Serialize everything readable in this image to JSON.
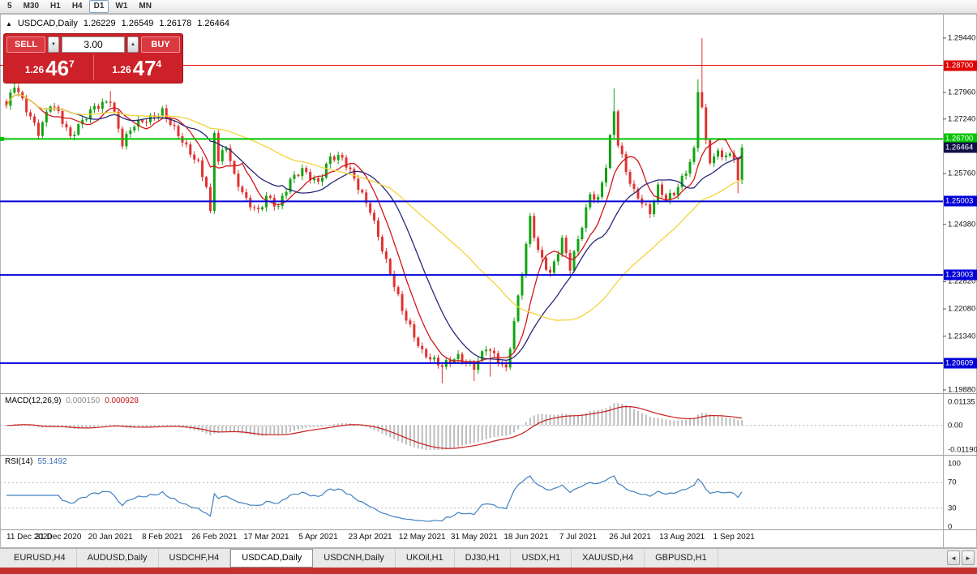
{
  "colors": {
    "candle_up": "#12a312",
    "candle_down": "#e03232",
    "ma_fast": "#d01818",
    "ma_mid": "#282878",
    "ma_slow": "#f2d43c",
    "macd_hist": "#bdbdbd",
    "macd_signal": "#c81e1e",
    "rsi_line": "#4080c0",
    "hline_red": "#e00000",
    "hline_green": "#00c400",
    "hline_blue": "#0000d8",
    "current_price_bg": "#101048",
    "panel_red": "#cd2129",
    "button_red": "#d93a40",
    "taskbar_red": "#c53030"
  },
  "toolbar": {
    "timeframes": [
      {
        "label": "5",
        "active": false
      },
      {
        "label": "M30",
        "active": false
      },
      {
        "label": "H1",
        "active": false
      },
      {
        "label": "H4",
        "active": false
      },
      {
        "label": "D1",
        "active": true
      },
      {
        "label": "W1",
        "active": false
      },
      {
        "label": "MN",
        "active": false
      }
    ]
  },
  "chart_header": {
    "collapse_icon": "▲",
    "symbol": "USDCAD,Daily",
    "open": "1.26229",
    "high": "1.26549",
    "low": "1.26178",
    "close": "1.26464"
  },
  "trade_panel": {
    "sell_label": "SELL",
    "buy_label": "BUY",
    "volume": "3.00",
    "down_arrow": "▼",
    "up_arrow": "▲",
    "sell_price": {
      "prefix": "1.26",
      "big": "46",
      "sup": "7"
    },
    "buy_price": {
      "prefix": "1.26",
      "big": "47",
      "sup": "4"
    }
  },
  "price_axis": {
    "plain_ticks": [
      "1.29440",
      "1.27960",
      "1.27240",
      "1.25760",
      "1.24380",
      "1.22820",
      "1.22080",
      "1.21340",
      "1.19880"
    ],
    "badges": [
      {
        "text": "1.28700",
        "bg": "#e00000"
      },
      {
        "text": "1.26700",
        "bg": "#00c400"
      },
      {
        "text": "1.26464",
        "bg": "#101048"
      },
      {
        "text": "1.25003",
        "bg": "#0000d8"
      },
      {
        "text": "1.23003",
        "bg": "#0000d8"
      },
      {
        "text": "1.20609",
        "bg": "#0000d8"
      }
    ]
  },
  "hlines": [
    {
      "value": 1.287,
      "color_key": "hline_red",
      "width": 1,
      "left_marker": false
    },
    {
      "value": 1.267,
      "color_key": "hline_green",
      "width": 2,
      "left_marker": true
    },
    {
      "value": 1.25003,
      "color_key": "hline_blue",
      "width": 2,
      "left_marker": false
    },
    {
      "value": 1.23003,
      "color_key": "hline_blue",
      "width": 2,
      "left_marker": false
    },
    {
      "value": 1.20609,
      "color_key": "hline_blue",
      "width": 2,
      "left_marker": false
    }
  ],
  "chart_data": {
    "type": "candlestick",
    "symbol": "USDCAD",
    "timeframe": "Daily",
    "visible_price_range": [
      1.1988,
      1.2944
    ],
    "candle_count": 185,
    "last_close": 1.26464,
    "close_keypoints": [
      [
        0,
        1.276
      ],
      [
        2,
        1.2812
      ],
      [
        5,
        1.2746
      ],
      [
        8,
        1.269
      ],
      [
        11,
        1.2772
      ],
      [
        13,
        1.2742
      ],
      [
        16,
        1.2668
      ],
      [
        19,
        1.2716
      ],
      [
        22,
        1.2762
      ],
      [
        26,
        1.2778
      ],
      [
        29,
        1.2652
      ],
      [
        32,
        1.2706
      ],
      [
        36,
        1.2732
      ],
      [
        39,
        1.2748
      ],
      [
        42,
        1.2692
      ],
      [
        45,
        1.2642
      ],
      [
        48,
        1.2606
      ],
      [
        50,
        1.2548
      ],
      [
        51,
        1.2472
      ],
      [
        52,
        1.2696
      ],
      [
        53,
        1.2612
      ],
      [
        55,
        1.2648
      ],
      [
        57,
        1.2562
      ],
      [
        60,
        1.2502
      ],
      [
        63,
        1.2478
      ],
      [
        65,
        1.2518
      ],
      [
        68,
        1.2482
      ],
      [
        71,
        1.2552
      ],
      [
        74,
        1.2588
      ],
      [
        78,
        1.2556
      ],
      [
        81,
        1.2618
      ],
      [
        84,
        1.2612
      ],
      [
        87,
        1.2562
      ],
      [
        91,
        1.2482
      ],
      [
        95,
        1.2332
      ],
      [
        99,
        1.2202
      ],
      [
        104,
        1.2096
      ],
      [
        109,
        1.2048
      ],
      [
        113,
        1.2076
      ],
      [
        117,
        1.2056
      ],
      [
        120,
        1.2106
      ],
      [
        123,
        1.2062
      ],
      [
        125,
        1.2038
      ],
      [
        127,
        1.2172
      ],
      [
        129,
        1.2312
      ],
      [
        131,
        1.2462
      ],
      [
        133,
        1.2366
      ],
      [
        136,
        1.2296
      ],
      [
        139,
        1.2392
      ],
      [
        141,
        1.2322
      ],
      [
        144,
        1.2442
      ],
      [
        146,
        1.2522
      ],
      [
        148,
        1.2502
      ],
      [
        150,
        1.2592
      ],
      [
        152,
        1.2742
      ],
      [
        153,
        1.2656
      ],
      [
        155,
        1.2586
      ],
      [
        157,
        1.2532
      ],
      [
        159,
        1.2502
      ],
      [
        161,
        1.2468
      ],
      [
        163,
        1.2532
      ],
      [
        165,
        1.2502
      ],
      [
        167,
        1.2522
      ],
      [
        170,
        1.2588
      ],
      [
        172,
        1.2642
      ],
      [
        173,
        1.2806
      ],
      [
        174,
        1.2756
      ],
      [
        175,
        1.2656
      ],
      [
        176,
        1.2606
      ],
      [
        178,
        1.2626
      ],
      [
        180,
        1.2622
      ],
      [
        182,
        1.2628
      ],
      [
        183,
        1.2562
      ],
      [
        184,
        1.26464
      ]
    ],
    "wick_overrides": [
      {
        "i": 2,
        "high": 1.283
      },
      {
        "i": 26,
        "high": 1.28
      },
      {
        "i": 51,
        "low": 1.2468
      },
      {
        "i": 52,
        "low": 1.2466
      },
      {
        "i": 109,
        "low": 1.2006
      },
      {
        "i": 117,
        "low": 1.2012
      },
      {
        "i": 121,
        "low": 1.2024
      },
      {
        "i": 152,
        "high": 1.2807
      },
      {
        "i": 173,
        "high": 1.2832
      },
      {
        "i": 174,
        "high": 1.2944
      },
      {
        "i": 183,
        "low": 1.2522
      }
    ],
    "x_labels": [
      {
        "i": 0,
        "t": "11 Dec 2020"
      },
      {
        "i": 13,
        "t": "31 Dec 2020"
      },
      {
        "i": 26,
        "t": "20 Jan 2021"
      },
      {
        "i": 39,
        "t": "8 Feb 2021"
      },
      {
        "i": 52,
        "t": "26 Feb 2021"
      },
      {
        "i": 65,
        "t": "17 Mar 2021"
      },
      {
        "i": 78,
        "t": "5 Apr 2021"
      },
      {
        "i": 91,
        "t": "23 Apr 2021"
      },
      {
        "i": 104,
        "t": "12 May 2021"
      },
      {
        "i": 117,
        "t": "31 May 2021"
      },
      {
        "i": 130,
        "t": "18 Jun 2021"
      },
      {
        "i": 143,
        "t": "7 Jul 2021"
      },
      {
        "i": 156,
        "t": "26 Jul 2021"
      },
      {
        "i": 169,
        "t": "13 Aug 2021"
      },
      {
        "i": 182,
        "t": "1 Sep 2021"
      }
    ],
    "moving_averages": [
      {
        "period": 8,
        "color_key": "ma_fast"
      },
      {
        "period": 18,
        "color_key": "ma_mid"
      },
      {
        "period": 45,
        "color_key": "ma_slow"
      }
    ],
    "macd": {
      "label": "MACD(12,26,9)",
      "value_main": "0.000150",
      "value_signal": "0.000928",
      "fast": 12,
      "slow": 26,
      "signal": 9,
      "axis_ticks": [
        "0.01135",
        "0.00",
        "-0.01190"
      ],
      "axis_values": [
        0.01135,
        0,
        -0.0119
      ]
    },
    "rsi": {
      "label": "RSI(14)",
      "value": "55.1492",
      "period": 14,
      "levels": [
        70,
        30
      ],
      "axis_ticks": [
        100,
        70,
        30,
        0
      ]
    }
  },
  "tabs": {
    "items": [
      {
        "label": "EURUSD,H4",
        "active": false
      },
      {
        "label": "AUDUSD,Daily",
        "active": false
      },
      {
        "label": "USDCHF,H4",
        "active": false
      },
      {
        "label": "USDCAD,Daily",
        "active": true
      },
      {
        "label": "USDCNH,Daily",
        "active": false
      },
      {
        "label": "UKOil,H1",
        "active": false
      },
      {
        "label": "DJ30,H1",
        "active": false
      },
      {
        "label": "USDX,H1",
        "active": false
      },
      {
        "label": "XAUUSD,H4",
        "active": false
      },
      {
        "label": "GBPUSD,H1",
        "active": false
      }
    ],
    "left_arrow": "◄",
    "right_arrow": "►"
  }
}
